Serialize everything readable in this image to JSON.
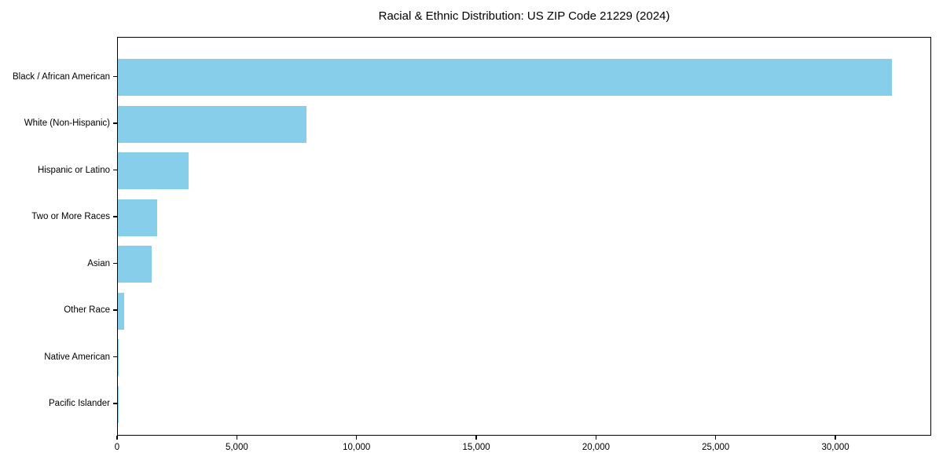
{
  "chart_data": {
    "type": "bar",
    "orientation": "horizontal",
    "title": "Racial & Ethnic Distribution: US ZIP Code 21229 (2024)",
    "categories": [
      "Black / African American",
      "White (Non-Hispanic)",
      "Hispanic or Latino",
      "Two or More Races",
      "Asian",
      "Other Race",
      "Native American",
      "Pacific Islander"
    ],
    "values": [
      32400,
      7900,
      2950,
      1650,
      1400,
      270,
      40,
      15
    ],
    "xlabel": "",
    "ylabel": "",
    "xlim": [
      0,
      34000
    ],
    "xticks": [
      0,
      5000,
      10000,
      15000,
      20000,
      25000,
      30000
    ],
    "xtick_labels": [
      "0",
      "5,000",
      "10,000",
      "15,000",
      "20,000",
      "25,000",
      "30,000"
    ],
    "bar_color": "#87CEEB",
    "grid": false,
    "legend": null
  }
}
